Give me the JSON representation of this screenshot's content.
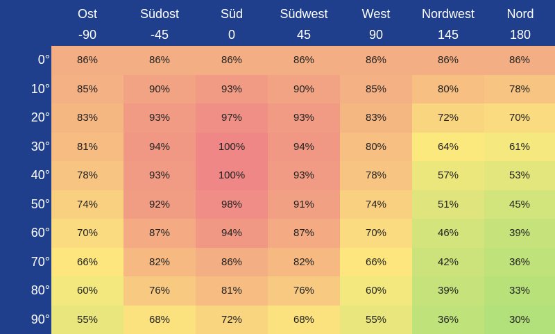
{
  "chart_data": {
    "type": "heatmap",
    "title": "",
    "columns": [
      {
        "label": "Ost",
        "value": "-90"
      },
      {
        "label": "Südost",
        "value": "-45"
      },
      {
        "label": "Süd",
        "value": "0"
      },
      {
        "label": "Südwest",
        "value": "45"
      },
      {
        "label": "West",
        "value": "90"
      },
      {
        "label": "Nordwest",
        "value": "145"
      },
      {
        "label": "Nord",
        "value": "180"
      }
    ],
    "rows": [
      "0°",
      "10°",
      "20°",
      "30°",
      "40°",
      "50°",
      "60°",
      "70°",
      "80°",
      "90°"
    ],
    "values": [
      [
        86,
        86,
        86,
        86,
        86,
        86,
        86
      ],
      [
        85,
        90,
        93,
        90,
        85,
        80,
        78
      ],
      [
        83,
        93,
        97,
        93,
        83,
        72,
        70
      ],
      [
        81,
        94,
        100,
        94,
        80,
        64,
        61
      ],
      [
        78,
        93,
        100,
        93,
        78,
        57,
        53
      ],
      [
        74,
        92,
        98,
        91,
        74,
        51,
        45
      ],
      [
        70,
        87,
        94,
        87,
        70,
        46,
        39
      ],
      [
        66,
        82,
        86,
        82,
        66,
        42,
        36
      ],
      [
        60,
        76,
        81,
        76,
        60,
        39,
        33
      ],
      [
        55,
        68,
        72,
        68,
        55,
        36,
        30
      ]
    ],
    "value_suffix": "%",
    "colors": {
      "background": "#1f3f8c",
      "low": "#b2e07a",
      "mid": "#fde97e",
      "high": "#ee8786"
    }
  }
}
